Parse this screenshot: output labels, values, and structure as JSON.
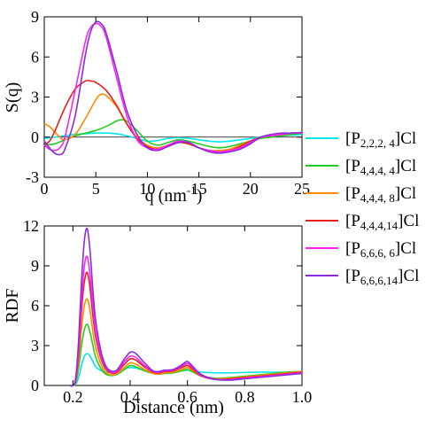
{
  "figure": {
    "legend": [
      {
        "label": "[P2,2,2, 4]Cl",
        "base": "[P",
        "sub": "2,2,2, 4",
        "suffix": "]Cl",
        "color": "#00e5ee"
      },
      {
        "label": "[P4,4,4, 4]Cl",
        "base": "[P",
        "sub": "4,4,4, 4",
        "suffix": "]Cl",
        "color": "#22cc22"
      },
      {
        "label": "[P4,4,4, 8]Cl",
        "base": "[P",
        "sub": "4,4,4, 8",
        "suffix": "]Cl",
        "color": "#ff8c00"
      },
      {
        "label": "[P4,4,4,14]Cl",
        "base": "[P",
        "sub": "4,4,4,14",
        "suffix": "]Cl",
        "color": "#e8201c"
      },
      {
        "label": "[P6,6,6, 6]Cl",
        "base": "[P",
        "sub": "6,6,6, 6",
        "suffix": "]Cl",
        "color": "#ff22ee"
      },
      {
        "label": "[P6,6,6,14]Cl",
        "base": "[P",
        "sub": "6,6,6,14",
        "suffix": "]Cl",
        "color": "#8a2be2"
      }
    ]
  },
  "chart_data": [
    {
      "type": "line",
      "ylabel": "S(q)",
      "xlabel": "q (nm-1)",
      "xlabel_main": "q (nm",
      "xlabel_sup": "-1",
      "xlabel_end": ")",
      "xlim": [
        0,
        25
      ],
      "ylim": [
        -3,
        9
      ],
      "xticks": [
        0,
        5,
        10,
        15,
        20,
        25
      ],
      "yticks": [
        -3,
        0,
        3,
        6,
        9
      ],
      "grid": false,
      "series": [
        {
          "name": "[P2,2,2, 4]Cl",
          "color": "#00e5ee",
          "x": [
            0,
            1,
            2,
            3,
            4,
            5,
            6,
            7,
            8,
            9,
            10,
            11,
            12,
            13,
            14,
            15,
            16,
            17,
            18,
            19,
            20,
            21,
            22,
            23,
            24,
            25
          ],
          "y": [
            -0.1,
            0.0,
            0.1,
            0.2,
            0.25,
            0.3,
            0.3,
            0.25,
            0.1,
            -0.1,
            -0.3,
            -0.25,
            -0.1,
            -0.05,
            -0.1,
            -0.2,
            -0.3,
            -0.35,
            -0.3,
            -0.2,
            -0.1,
            0.0,
            0.05,
            0.1,
            0.15,
            0.2
          ]
        },
        {
          "name": "[P4,4,4, 4]Cl",
          "color": "#22cc22",
          "x": [
            0,
            1,
            2,
            3,
            4,
            5,
            6,
            7,
            7.5,
            8,
            9,
            10,
            11,
            12,
            13,
            14,
            15,
            16,
            17,
            18,
            19,
            20,
            21,
            22,
            23,
            24,
            25
          ],
          "y": [
            -0.6,
            -0.5,
            -0.2,
            0.1,
            0.3,
            0.5,
            0.8,
            1.2,
            1.3,
            1.2,
            0.5,
            -0.3,
            -0.6,
            -0.4,
            -0.2,
            -0.3,
            -0.5,
            -0.7,
            -0.8,
            -0.7,
            -0.5,
            -0.3,
            -0.1,
            0.0,
            0.1,
            0.2,
            0.3
          ]
        },
        {
          "name": "[P4,4,4, 8]Cl",
          "color": "#ff8c00",
          "x": [
            0,
            0.5,
            1,
            1.5,
            2,
            3,
            4,
            5,
            5.5,
            6,
            7,
            8,
            9,
            10,
            11,
            12,
            13,
            14,
            15,
            16,
            17,
            18,
            19,
            20,
            21,
            22,
            23,
            24,
            25
          ],
          "y": [
            1.0,
            0.8,
            0.4,
            0.0,
            -0.2,
            0.2,
            1.4,
            2.8,
            3.2,
            3.1,
            2.3,
            1.0,
            0.0,
            -0.6,
            -0.8,
            -0.6,
            -0.4,
            -0.5,
            -0.8,
            -1.0,
            -1.0,
            -0.9,
            -0.6,
            -0.3,
            0.0,
            0.1,
            0.2,
            0.3,
            0.3
          ]
        },
        {
          "name": "[P4,4,4,14]Cl",
          "color": "#e8201c",
          "x": [
            0,
            0.5,
            1,
            2,
            3,
            4,
            4.5,
            5,
            6,
            7,
            8,
            9,
            10,
            11,
            12,
            13,
            14,
            15,
            16,
            17,
            18,
            19,
            20,
            21,
            22,
            23,
            24,
            25
          ],
          "y": [
            -0.6,
            -0.3,
            0.4,
            2.2,
            3.6,
            4.2,
            4.2,
            4.1,
            3.5,
            2.4,
            1.0,
            -0.1,
            -0.7,
            -0.9,
            -0.7,
            -0.4,
            -0.5,
            -0.8,
            -1.0,
            -1.1,
            -1.0,
            -0.7,
            -0.3,
            0.0,
            0.1,
            0.2,
            0.3,
            0.3
          ]
        },
        {
          "name": "[P6,6,6, 6]Cl",
          "color": "#ff22ee",
          "x": [
            0,
            0.5,
            1,
            1.5,
            2,
            3,
            4,
            4.5,
            5,
            5.5,
            6,
            7,
            8,
            9,
            10,
            11,
            12,
            13,
            14,
            15,
            16,
            17,
            18,
            19,
            20,
            21,
            22,
            23,
            24,
            25
          ],
          "y": [
            -0.6,
            -0.9,
            -1.0,
            -0.8,
            0.0,
            3.5,
            7.2,
            8.2,
            8.5,
            8.3,
            7.5,
            4.5,
            1.6,
            -0.2,
            -0.8,
            -0.9,
            -0.6,
            -0.3,
            -0.4,
            -0.8,
            -1.0,
            -1.1,
            -1.0,
            -0.8,
            -0.4,
            0.0,
            0.1,
            0.2,
            0.3,
            0.3
          ]
        },
        {
          "name": "[P6,6,6,14]Cl",
          "color": "#8a2be2",
          "x": [
            0,
            0.5,
            1,
            1.5,
            2,
            3,
            4,
            4.5,
            5,
            5.5,
            6,
            7,
            8,
            9,
            10,
            11,
            12,
            13,
            14,
            15,
            16,
            17,
            18,
            19,
            20,
            21,
            22,
            23,
            24,
            25
          ],
          "y": [
            -0.3,
            -0.8,
            -1.2,
            -1.3,
            -0.9,
            1.6,
            6.2,
            7.9,
            8.6,
            8.5,
            7.8,
            5.0,
            2.0,
            0.2,
            -0.8,
            -1.0,
            -0.7,
            -0.4,
            -0.4,
            -0.8,
            -1.1,
            -1.2,
            -1.1,
            -0.9,
            -0.5,
            0.0,
            0.2,
            0.3,
            0.3,
            0.35
          ]
        }
      ]
    },
    {
      "type": "line",
      "ylabel": "RDF",
      "xlabel": "Distance (nm)",
      "xlim": [
        0.1,
        1.0
      ],
      "ylim": [
        0,
        12
      ],
      "xticks": [
        0.2,
        0.4,
        0.6,
        0.8,
        1.0
      ],
      "xticklabels": [
        "0.2",
        "0.4",
        "0.6",
        "0.8",
        "1.0"
      ],
      "yticks": [
        0,
        3,
        6,
        9,
        12
      ],
      "grid": false,
      "series": [
        {
          "name": "[P2,2,2, 4]Cl",
          "color": "#00e5ee",
          "x": [
            0.19,
            0.2,
            0.21,
            0.22,
            0.23,
            0.24,
            0.25,
            0.26,
            0.27,
            0.28,
            0.3,
            0.32,
            0.35,
            0.38,
            0.4,
            0.42,
            0.45,
            0.48,
            0.5,
            0.52,
            0.55,
            0.58,
            0.6,
            0.62,
            0.65,
            0.7,
            0.75,
            0.8,
            0.85,
            0.9,
            0.95,
            1.0
          ],
          "y": [
            0,
            0,
            0.1,
            0.6,
            1.5,
            2.2,
            2.4,
            2.2,
            1.8,
            1.4,
            1.1,
            1.0,
            1.05,
            1.25,
            1.35,
            1.3,
            1.15,
            1.05,
            1.0,
            1.0,
            1.05,
            1.1,
            1.15,
            1.1,
            1.0,
            0.95,
            0.95,
            0.98,
            1.0,
            1.0,
            1.0,
            1.0
          ]
        },
        {
          "name": "[P4,4,4, 4]Cl",
          "color": "#22cc22",
          "x": [
            0.19,
            0.2,
            0.21,
            0.22,
            0.23,
            0.24,
            0.25,
            0.26,
            0.27,
            0.28,
            0.3,
            0.32,
            0.35,
            0.38,
            0.4,
            0.42,
            0.45,
            0.48,
            0.5,
            0.52,
            0.55,
            0.58,
            0.6,
            0.62,
            0.65,
            0.7,
            0.75,
            0.8,
            0.85,
            0.9,
            0.95,
            1.0
          ],
          "y": [
            0,
            0,
            0.2,
            1.3,
            3.0,
            4.2,
            4.6,
            4.0,
            3.0,
            2.1,
            1.2,
            0.8,
            0.8,
            1.2,
            1.5,
            1.4,
            1.1,
            0.9,
            0.85,
            0.9,
            0.95,
            1.1,
            1.2,
            1.0,
            0.7,
            0.55,
            0.6,
            0.7,
            0.8,
            0.9,
            1.0,
            1.05
          ]
        },
        {
          "name": "[P4,4,4, 8]Cl",
          "color": "#ff8c00",
          "x": [
            0.19,
            0.2,
            0.21,
            0.22,
            0.23,
            0.24,
            0.25,
            0.26,
            0.27,
            0.28,
            0.3,
            0.32,
            0.35,
            0.38,
            0.4,
            0.42,
            0.45,
            0.48,
            0.5,
            0.52,
            0.55,
            0.58,
            0.6,
            0.62,
            0.65,
            0.7,
            0.75,
            0.8,
            0.85,
            0.9,
            0.95,
            1.0
          ],
          "y": [
            0,
            0,
            0.3,
            1.8,
            4.3,
            6.0,
            6.5,
            5.6,
            4.0,
            2.8,
            1.5,
            0.9,
            0.85,
            1.35,
            1.7,
            1.6,
            1.2,
            0.9,
            0.85,
            0.95,
            1.0,
            1.2,
            1.35,
            1.1,
            0.7,
            0.5,
            0.55,
            0.65,
            0.75,
            0.85,
            0.95,
            1.05
          ]
        },
        {
          "name": "[P4,4,4,14]Cl",
          "color": "#e8201c",
          "x": [
            0.19,
            0.2,
            0.21,
            0.22,
            0.23,
            0.24,
            0.25,
            0.26,
            0.27,
            0.28,
            0.3,
            0.32,
            0.35,
            0.38,
            0.4,
            0.42,
            0.45,
            0.48,
            0.5,
            0.52,
            0.55,
            0.58,
            0.6,
            0.62,
            0.65,
            0.7,
            0.75,
            0.8,
            0.85,
            0.9,
            0.95,
            1.0
          ],
          "y": [
            0,
            0,
            0.4,
            2.4,
            5.6,
            7.8,
            8.5,
            7.3,
            5.2,
            3.6,
            1.9,
            1.1,
            0.95,
            1.6,
            2.0,
            1.9,
            1.4,
            1.0,
            0.95,
            1.05,
            1.1,
            1.35,
            1.5,
            1.2,
            0.7,
            0.45,
            0.5,
            0.6,
            0.7,
            0.8,
            0.9,
            1.0
          ]
        },
        {
          "name": "[P6,6,6, 6]Cl",
          "color": "#ff22ee",
          "x": [
            0.19,
            0.2,
            0.21,
            0.22,
            0.23,
            0.24,
            0.25,
            0.26,
            0.27,
            0.28,
            0.3,
            0.32,
            0.35,
            0.38,
            0.4,
            0.42,
            0.45,
            0.48,
            0.5,
            0.52,
            0.55,
            0.58,
            0.6,
            0.62,
            0.65,
            0.7,
            0.75,
            0.8,
            0.85,
            0.9,
            0.95,
            1.0
          ],
          "y": [
            0,
            0,
            0.5,
            2.8,
            6.4,
            9.0,
            9.7,
            8.3,
            5.9,
            4.0,
            2.1,
            1.2,
            1.0,
            1.8,
            2.2,
            2.1,
            1.5,
            1.05,
            1.0,
            1.1,
            1.15,
            1.45,
            1.65,
            1.3,
            0.75,
            0.45,
            0.45,
            0.55,
            0.65,
            0.75,
            0.85,
            0.95
          ]
        },
        {
          "name": "[P6,6,6,14]Cl",
          "color": "#8a2be2",
          "x": [
            0.19,
            0.2,
            0.21,
            0.22,
            0.23,
            0.24,
            0.25,
            0.26,
            0.27,
            0.28,
            0.3,
            0.32,
            0.35,
            0.38,
            0.4,
            0.42,
            0.45,
            0.48,
            0.5,
            0.52,
            0.55,
            0.58,
            0.6,
            0.62,
            0.65,
            0.7,
            0.75,
            0.8,
            0.85,
            0.9,
            0.95,
            1.0
          ],
          "y": [
            0,
            0,
            0.6,
            3.4,
            7.8,
            10.9,
            11.8,
            10.1,
            7.1,
            4.8,
            2.4,
            1.3,
            1.1,
            2.0,
            2.5,
            2.4,
            1.7,
            1.1,
            1.05,
            1.15,
            1.2,
            1.55,
            1.8,
            1.4,
            0.8,
            0.45,
            0.4,
            0.5,
            0.6,
            0.7,
            0.8,
            0.9
          ]
        }
      ]
    }
  ]
}
